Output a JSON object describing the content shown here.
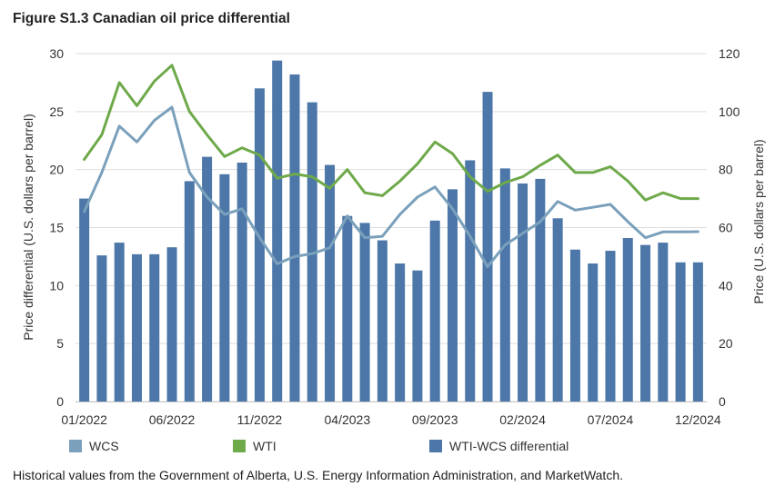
{
  "figure_title": "Figure S1.3 Canadian oil price differential",
  "source_note": "Historical values from the Government of Alberta, U.S. Energy Information Administration, and MarketWatch.",
  "colors": {
    "wcs": "#7aa0bb",
    "wti": "#6ea94a",
    "differential": "#4c77a8",
    "grid": "#dedede"
  },
  "chart_data": {
    "type": "bar",
    "title": "Figure S1.3 Canadian oil price differential",
    "ylabel": "Price differential (U.S. dollars per barrel)",
    "y2label": "Price (U.S. dollars per barrel)",
    "ylim": [
      0,
      30
    ],
    "y2lim": [
      0,
      120
    ],
    "yticks": [
      "0",
      "5",
      "10",
      "15",
      "20",
      "25",
      "30"
    ],
    "y2ticks": [
      "0",
      "20",
      "40",
      "60",
      "80",
      "100",
      "120"
    ],
    "x_tick_labels": [
      {
        "index": 0,
        "label": "01/2022"
      },
      {
        "index": 5,
        "label": "06/2022"
      },
      {
        "index": 10,
        "label": "11/2022"
      },
      {
        "index": 15,
        "label": "04/2023"
      },
      {
        "index": 20,
        "label": "09/2023"
      },
      {
        "index": 25,
        "label": "02/2024"
      },
      {
        "index": 30,
        "label": "07/2024"
      },
      {
        "index": 35,
        "label": "12/2024"
      }
    ],
    "categories": [
      "01/2022",
      "02/2022",
      "03/2022",
      "04/2022",
      "05/2022",
      "06/2022",
      "07/2022",
      "08/2022",
      "09/2022",
      "10/2022",
      "11/2022",
      "12/2022",
      "01/2023",
      "02/2023",
      "03/2023",
      "04/2023",
      "05/2023",
      "06/2023",
      "07/2023",
      "08/2023",
      "09/2023",
      "10/2023",
      "11/2023",
      "12/2023",
      "01/2024",
      "02/2024",
      "03/2024",
      "04/2024",
      "05/2024",
      "06/2024",
      "07/2024",
      "08/2024",
      "09/2024",
      "10/2024",
      "11/2024",
      "12/2024"
    ],
    "series": [
      {
        "name": "WTI-WCS differential",
        "type": "bar",
        "axis": "left",
        "values": [
          17.5,
          12.6,
          13.7,
          12.7,
          12.7,
          13.3,
          19.0,
          21.1,
          19.6,
          20.6,
          27.0,
          29.4,
          28.2,
          25.8,
          20.4,
          16.0,
          15.4,
          13.9,
          11.9,
          11.3,
          15.6,
          18.3,
          20.8,
          26.7,
          20.1,
          18.8,
          19.2,
          15.8,
          13.1,
          11.9,
          13.0,
          14.1,
          13.5,
          13.7,
          12.0,
          12.0
        ]
      },
      {
        "name": "WCS",
        "type": "line",
        "axis": "right",
        "values": [
          65.5,
          79.0,
          95.0,
          89.5,
          97.0,
          101.5,
          79.0,
          70.5,
          64.5,
          66.5,
          56.5,
          47.5,
          50.0,
          51.0,
          53.0,
          64.0,
          56.5,
          57.0,
          64.5,
          70.5,
          74.0,
          66.5,
          57.0,
          46.5,
          54.0,
          58.0,
          62.0,
          69.0,
          66.0,
          67.0,
          68.0,
          62.0,
          56.5,
          58.5,
          58.5,
          58.6
        ]
      },
      {
        "name": "WTI",
        "type": "line",
        "axis": "right",
        "values": [
          83.5,
          92.0,
          110.0,
          102.0,
          110.5,
          116.0,
          100.0,
          92.0,
          84.5,
          87.5,
          85.0,
          77.0,
          78.5,
          77.5,
          73.5,
          80.0,
          72.0,
          71.0,
          76.0,
          82.0,
          89.5,
          85.5,
          77.5,
          72.5,
          75.5,
          77.5,
          81.5,
          85.0,
          79.0,
          79.0,
          81.0,
          76.0,
          69.5,
          72.0,
          70.0,
          70.0
        ]
      }
    ],
    "legend": [
      {
        "key": "wcs",
        "label": "WCS"
      },
      {
        "key": "wti",
        "label": "WTI"
      },
      {
        "key": "differential",
        "label": "WTI-WCS differential"
      }
    ],
    "legend_position": "bottom",
    "grid": true
  }
}
